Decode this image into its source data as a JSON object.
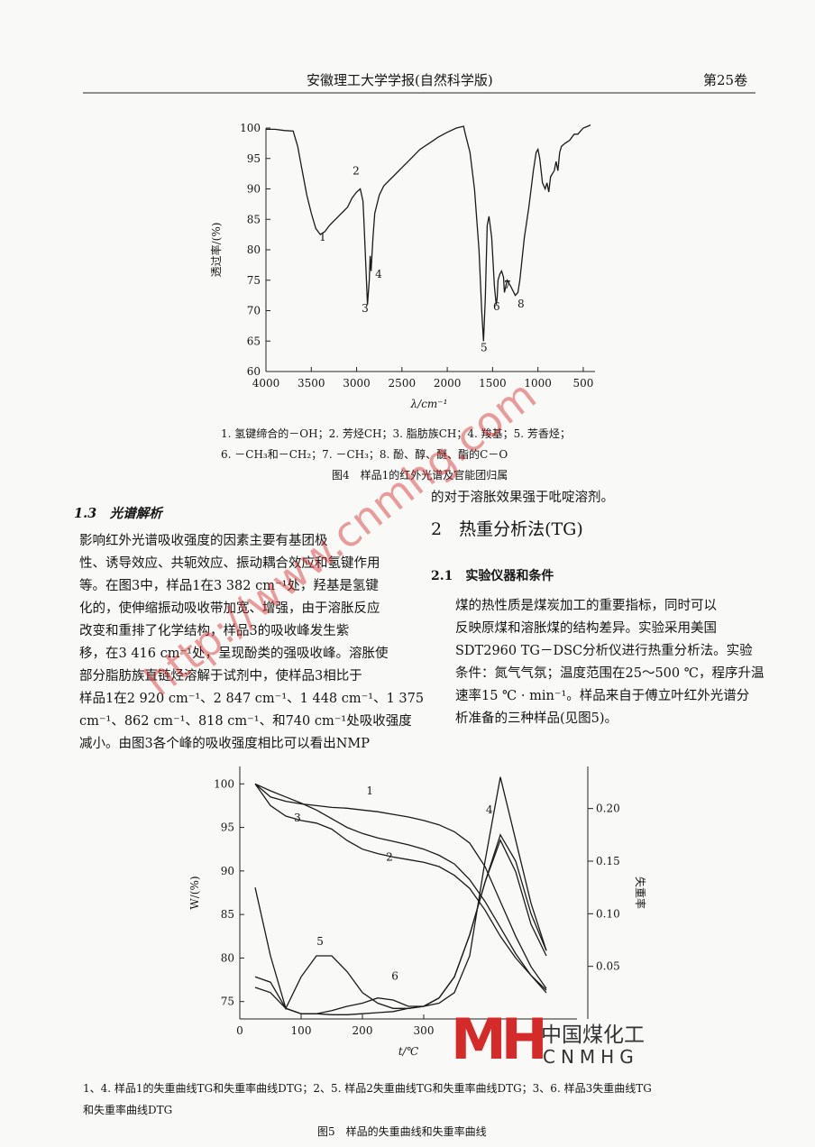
{
  "header": {
    "journal": "安徽理工大学学报(自然科学版)",
    "volume": "第25卷"
  },
  "figure4": {
    "type": "line",
    "y_label": "透过率/(%)",
    "x_label": "λ/cm⁻¹",
    "xlim": [
      4000,
      400
    ],
    "xticks": [
      4000,
      3500,
      3000,
      2500,
      2000,
      1500,
      1000,
      500
    ],
    "ylim": [
      60,
      100
    ],
    "yticks": [
      60,
      65,
      70,
      75,
      80,
      85,
      90,
      95,
      100
    ],
    "color": "#1a1a1a",
    "x": [
      4000,
      3900,
      3800,
      3700,
      3650,
      3600,
      3550,
      3500,
      3450,
      3400,
      3350,
      3300,
      3200,
      3100,
      3050,
      3000,
      2960,
      2930,
      2920,
      2900,
      2880,
      2860,
      2850,
      2840,
      2820,
      2800,
      2750,
      2700,
      2600,
      2500,
      2400,
      2300,
      2200,
      2100,
      2000,
      1900,
      1820,
      1800,
      1750,
      1700,
      1650,
      1620,
      1600,
      1580,
      1560,
      1540,
      1510,
      1480,
      1460,
      1450,
      1440,
      1420,
      1400,
      1380,
      1370,
      1340,
      1300,
      1250,
      1220,
      1200,
      1150,
      1100,
      1050,
      1020,
      1000,
      980,
      950,
      920,
      900,
      880,
      860,
      820,
      800,
      780,
      760,
      740,
      700,
      650,
      600,
      560,
      500,
      450,
      420
    ],
    "values": [
      99.8,
      99.8,
      99.6,
      99.5,
      97,
      93,
      89,
      86,
      83.5,
      82.5,
      83,
      84,
      85.5,
      87,
      88.5,
      89.5,
      90,
      88,
      85,
      78,
      71,
      75,
      79,
      76.5,
      82,
      86,
      89,
      90.5,
      92,
      93.5,
      95,
      96.5,
      97.5,
      98.5,
      99.3,
      100,
      100.3,
      99,
      96,
      90,
      80,
      70,
      65,
      72,
      84,
      85.5,
      82,
      74,
      71,
      72,
      75,
      76,
      76.5,
      75.5,
      73,
      75,
      74,
      72.5,
      73,
      75,
      82,
      87,
      93,
      96,
      96.5,
      95,
      91,
      90,
      91,
      89.5,
      92,
      93,
      94.5,
      93,
      96,
      97,
      97.5,
      98,
      99,
      99,
      100,
      100.3,
      100.5
    ],
    "annotations": [
      {
        "text": "1",
        "x": 3374,
        "y": 81.5
      },
      {
        "text": "2",
        "x": 3006,
        "y": 92.4
      },
      {
        "text": "3",
        "x": 2907,
        "y": 69.8
      },
      {
        "text": "4",
        "x": 2757,
        "y": 75.4
      },
      {
        "text": "5",
        "x": 1595,
        "y": 63.3
      },
      {
        "text": "6",
        "x": 1456,
        "y": 70.1
      },
      {
        "text": "7",
        "x": 1336,
        "y": 73.6
      },
      {
        "text": "8",
        "x": 1187,
        "y": 70.5
      }
    ],
    "notes": [
      "1. 氢键缔合的－OH；2. 芳烃CH；3. 脂肪族CH；4. 羧基；5. 芳香烃；",
      "6. －CH₃和－CH₂；7. －CH₃；8. 酚、醇、醚、酯的C－O"
    ],
    "caption": "图4　样品1的红外光谱及官能团归属"
  },
  "section13": {
    "heading": "1.3　光谱解析",
    "lines": [
      "影响红外光谱吸收强度的因素主要有基团极",
      "性、诱导效应、共轭效应、振动耦合效应和氢键作用",
      "等。在图3中，样品1在3 382 cm⁻¹处，羟基是氢键",
      "化的，使伸缩振动吸收带加宽、增强，由于溶胀反应",
      "改变和重排了化学结构，样品3的吸收峰发生紫",
      "移，在3 416 cm⁻¹处，呈现酚类的强吸收峰。溶胀使",
      "部分脂肪族直链烃溶解于试剂中，使样品3相比于",
      "样品1在2 920 cm⁻¹、2 847 cm⁻¹、1 448 cm⁻¹、1 375",
      "cm⁻¹、862 cm⁻¹、818 cm⁻¹、和740 cm⁻¹处吸收强度",
      "减小。由图3各个峰的吸收强度相比可以看出NMP"
    ]
  },
  "right_column": {
    "continuation": "的对于溶胀效果强于吡啶溶剂。",
    "section2": "2　热重分析法(TG)",
    "section21": "2.1　实验仪器和条件",
    "lines": [
      "煤的热性质是煤炭加工的重要指标，同时可以",
      "反映原煤和溶胀煤的结构差异。实验采用美国",
      "SDT2960 TG－DSC分析仪进行热重分析法。实验",
      "条件：氮气气氛；温度范围在25～500 ℃，程序升温",
      "速率15 ℃ · min⁻¹。样品来自于傅立叶红外光谱分",
      "析准备的三种样品(见图5)。"
    ]
  },
  "figure5": {
    "type": "line",
    "y_label": "W/(%)",
    "y2_label": "失重率",
    "x_label": "t/℃",
    "xlim": [
      0,
      550
    ],
    "xticks": [
      0,
      100,
      200,
      300
    ],
    "ylim": [
      73,
      102
    ],
    "yticks": [
      75,
      80,
      85,
      90,
      95,
      100
    ],
    "y2lim": [
      0,
      0.24
    ],
    "y2ticks": [
      0.05,
      {
        "value": 0.1,
        "label": "0.10"
      },
      0.15,
      {
        "value": 0.2,
        "label": "0.20"
      }
    ],
    "x": [
      25,
      50,
      75,
      100,
      125,
      150,
      175,
      200,
      225,
      250,
      275,
      300,
      325,
      350,
      375,
      400,
      425,
      450,
      475,
      500
    ],
    "series": [
      {
        "color": "#1a1a1a",
        "values": [
          100,
          98.5,
          98,
          97.7,
          97.5,
          97.3,
          97.2,
          97,
          96.8,
          96.5,
          96.2,
          95.8,
          95.3,
          94.5,
          93.2,
          90.5,
          86.5,
          82.5,
          79,
          76.5
        ]
      },
      {
        "color": "#1a1a1a",
        "values": [
          100,
          97.5,
          96.3,
          95.8,
          95.5,
          94.8,
          93.5,
          92.5,
          92,
          91.6,
          91.3,
          91,
          90.5,
          89.5,
          88,
          85.5,
          82.5,
          80,
          78,
          76.3
        ]
      },
      {
        "color": "#1a1a1a",
        "values": [
          100,
          99.2,
          98.5,
          97.8,
          97,
          96,
          95,
          94.3,
          93.8,
          93.4,
          93,
          92.5,
          91.8,
          90.8,
          89,
          86.5,
          83.5,
          80.5,
          78,
          76
        ]
      },
      {
        "color": "#1a1a1a",
        "axis": "y2",
        "values": [
          0.04,
          0.035,
          0.01,
          0.005,
          0.005,
          0.004,
          0.004,
          0.005,
          0.006,
          0.007,
          0.01,
          0.012,
          0.015,
          0.025,
          0.06,
          0.15,
          0.23,
          0.17,
          0.11,
          0.065
        ]
      },
      {
        "color": "#1a1a1a",
        "axis": "y2",
        "values": [
          0.125,
          0.06,
          0.01,
          0.04,
          0.06,
          0.06,
          0.045,
          0.025,
          0.015,
          0.01,
          0.01,
          0.012,
          0.02,
          0.04,
          0.08,
          0.13,
          0.17,
          0.14,
          0.09,
          0.06
        ]
      },
      {
        "color": "#1a1a1a",
        "axis": "y2",
        "values": [
          0.03,
          0.025,
          0.01,
          0.005,
          0.005,
          0.008,
          0.012,
          0.015,
          0.02,
          0.018,
          0.012,
          0.012,
          0.02,
          0.04,
          0.08,
          0.13,
          0.175,
          0.15,
          0.1,
          0.065
        ]
      }
    ],
    "annotations": [
      {
        "text": "1",
        "x": 212,
        "y": 98.8
      },
      {
        "text": "2",
        "x": 244,
        "y": 91.2
      },
      {
        "text": "3",
        "x": 94,
        "y": 95.7
      },
      {
        "text": "4",
        "x": 407,
        "y": 96.6
      },
      {
        "text": "5",
        "x": 131,
        "y": 81.5
      },
      {
        "text": "6",
        "x": 253,
        "y": 77.5
      }
    ],
    "notes": [
      "1、4. 样品1的失重曲线TG和失重率曲线DTG；2、5. 样品2失重曲线TG和失重率曲线DTG；3、6. 样品3失重曲线TG",
      "和失重率曲线DTG"
    ],
    "caption": "图5　样品的失重曲线和失重率曲线"
  },
  "watermark": "http://www.cnmhg.com",
  "logo": {
    "mark": "MH",
    "name": "中国煤化工",
    "latin": "CNMHG"
  }
}
